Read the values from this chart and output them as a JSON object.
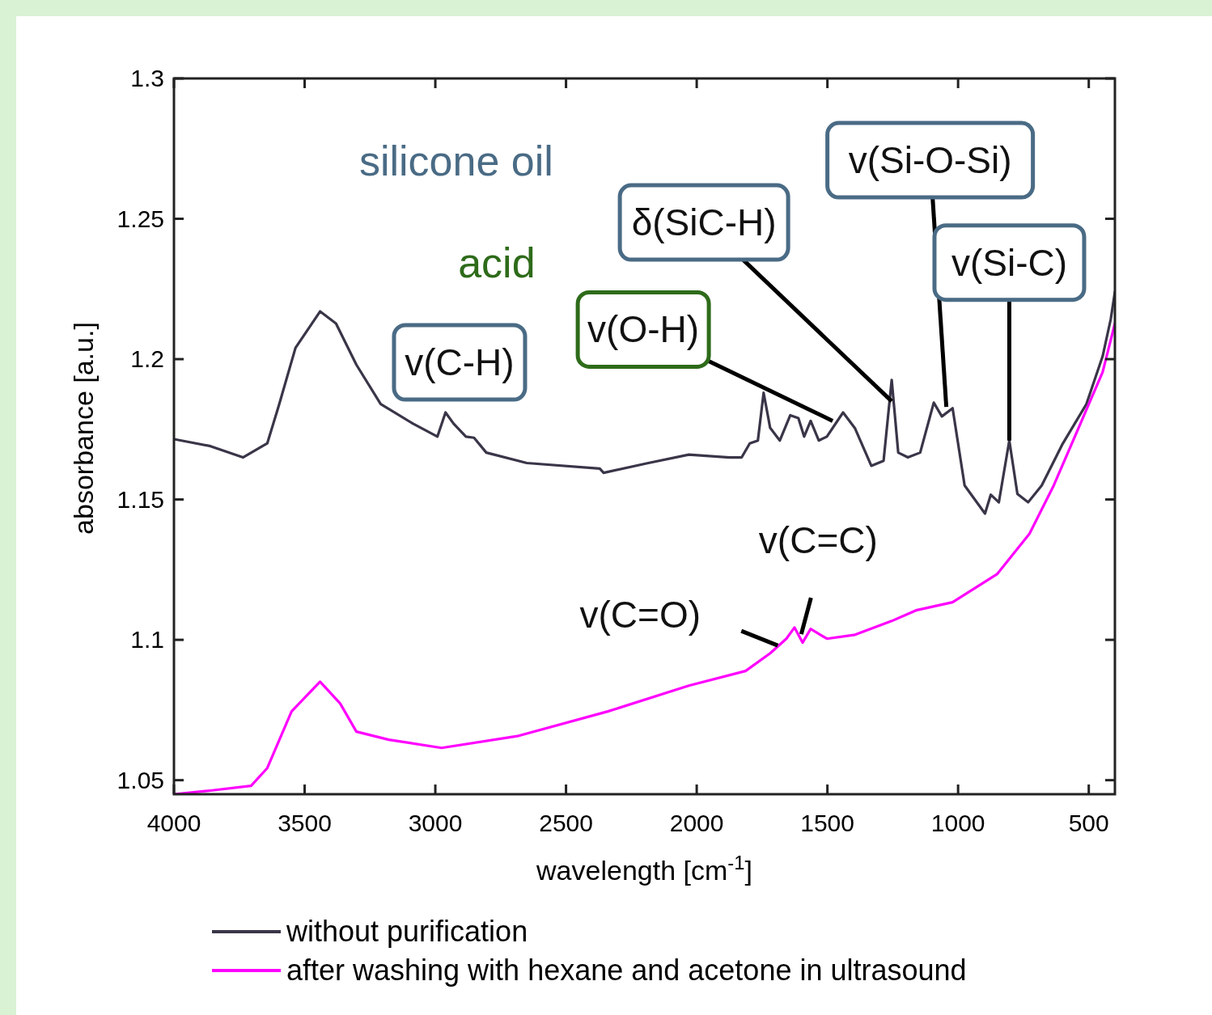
{
  "chart_data": {
    "type": "line",
    "xlabel": "wavelength [cm$^{-1}$]",
    "ylabel": "absorbance [a.u.]",
    "xlim": [
      4000,
      400
    ],
    "ylim": [
      1.045,
      1.3
    ],
    "xticks": [
      4000,
      3500,
      3000,
      2500,
      2000,
      1500,
      1000,
      500
    ],
    "yticks": [
      1.05,
      1.1,
      1.15,
      1.2,
      1.25,
      1.3
    ],
    "grid": false,
    "legend": "bottom",
    "line_style": "solid",
    "series": [
      {
        "name": "without purification",
        "color": "#3a3548",
        "x": [
          4000,
          3860,
          3736,
          3643,
          3597,
          3535,
          3441,
          3380,
          3302,
          3209,
          3085,
          2992,
          2961,
          2930,
          2883,
          2852,
          2805,
          2650,
          2371,
          2356,
          2185,
          2030,
          1875,
          1828,
          1797,
          1766,
          1744,
          1719,
          1682,
          1642,
          1611,
          1589,
          1564,
          1533,
          1502,
          1440,
          1394,
          1332,
          1285,
          1254,
          1229,
          1192,
          1145,
          1093,
          1062,
          1021,
          975,
          897,
          875,
          844,
          804,
          773,
          732,
          680,
          602,
          509,
          447,
          416,
          400
        ],
        "values": [
          1.1715,
          1.169,
          1.165,
          1.17,
          1.184,
          1.204,
          1.217,
          1.2127,
          1.198,
          1.184,
          1.177,
          1.1724,
          1.181,
          1.177,
          1.1724,
          1.172,
          1.1667,
          1.163,
          1.161,
          1.1595,
          1.163,
          1.166,
          1.165,
          1.165,
          1.17,
          1.171,
          1.188,
          1.1755,
          1.171,
          1.18,
          1.179,
          1.1724,
          1.178,
          1.171,
          1.1724,
          1.181,
          1.1753,
          1.162,
          1.1638,
          1.1926,
          1.1667,
          1.165,
          1.1667,
          1.1845,
          1.1796,
          1.1825,
          1.155,
          1.145,
          1.1517,
          1.149,
          1.171,
          1.152,
          1.149,
          1.155,
          1.1695,
          1.184,
          1.201,
          1.2142,
          1.224
        ]
      },
      {
        "name": "after washing with hexane and acetone in ultrasound",
        "color": "#ff00ff",
        "x": [
          4000,
          3860,
          3705,
          3643,
          3550,
          3441,
          3364,
          3302,
          3178,
          2976,
          2681,
          2340,
          2030,
          1813,
          1719,
          1657,
          1626,
          1595,
          1564,
          1502,
          1394,
          1254,
          1161,
          1021,
          851,
          727,
          634,
          540,
          447,
          400
        ],
        "values": [
          1.045,
          1.0463,
          1.048,
          1.0543,
          1.0745,
          1.0851,
          1.0773,
          1.0673,
          1.0644,
          1.0615,
          1.0658,
          1.0745,
          1.0837,
          1.0889,
          1.0952,
          1.1004,
          1.1044,
          1.099,
          1.1039,
          1.1004,
          1.1018,
          1.1067,
          1.1105,
          1.1134,
          1.1234,
          1.1378,
          1.155,
          1.1753,
          1.1954,
          1.2127
        ]
      }
    ],
    "annotations": [
      "silicone oil",
      "acid",
      {
        "text": "v(C-H)",
        "x": 2960,
        "y": 1.181
      },
      {
        "text": "v(O-H)",
        "x": 1480,
        "y": 1.178
      },
      {
        "text": "δ(SiC-H)",
        "x": 1254,
        "y": 1.185
      },
      {
        "text": "v(Si-O-Si)",
        "x": 1045,
        "y": 1.183
      },
      {
        "text": "v(Si-C)",
        "x": 804,
        "y": 1.171
      },
      {
        "text": "v(C=O)",
        "x": 1690,
        "y": 1.098
      },
      {
        "text": "v(C=C)",
        "x": 1600,
        "y": 1.102
      }
    ]
  }
}
